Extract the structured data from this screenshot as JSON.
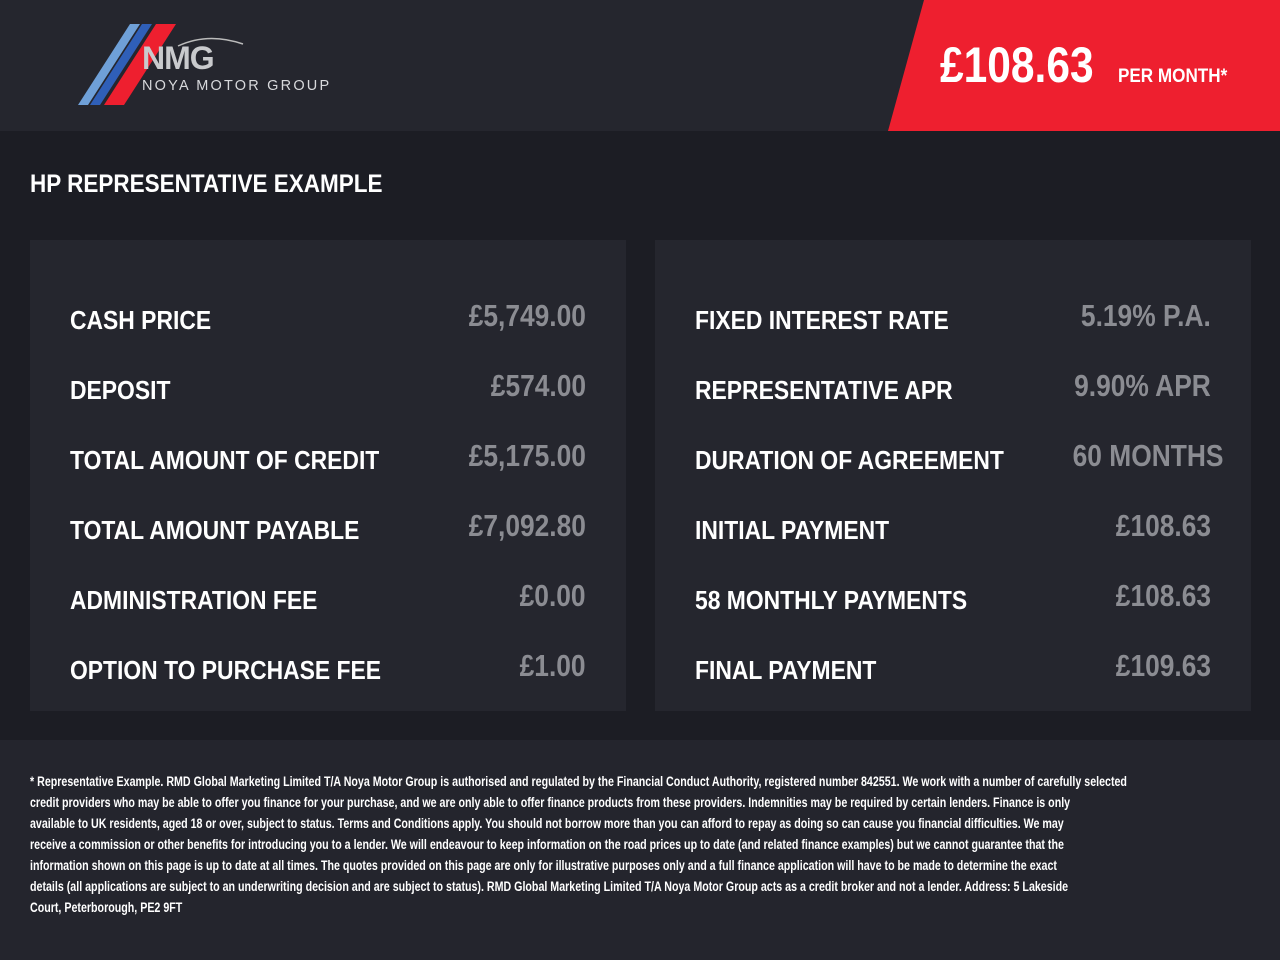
{
  "header": {
    "logo": {
      "mark": "NMG",
      "name": "NOYA MOTOR GROUP"
    },
    "price": {
      "amount": "£108.63",
      "unit": "PER MONTH*"
    },
    "accent_color": "#ee1f2f"
  },
  "section_title": "HP REPRESENTATIVE EXAMPLE",
  "left_panel": [
    {
      "label": "CASH PRICE",
      "value": "£5,749.00"
    },
    {
      "label": "DEPOSIT",
      "value": "£574.00"
    },
    {
      "label": "TOTAL AMOUNT OF CREDIT",
      "value": "£5,175.00"
    },
    {
      "label": "TOTAL AMOUNT PAYABLE",
      "value": "£7,092.80"
    },
    {
      "label": "ADMINISTRATION FEE",
      "value": "£0.00"
    },
    {
      "label": "OPTION TO PURCHASE FEE",
      "value": "£1.00"
    }
  ],
  "right_panel": [
    {
      "label": "FIXED INTEREST RATE",
      "value": "5.19% P.A."
    },
    {
      "label": "REPRESENTATIVE APR",
      "value": "9.90% APR"
    },
    {
      "label": "DURATION OF AGREEMENT",
      "value": "60 MONTHS"
    },
    {
      "label": "INITIAL PAYMENT",
      "value": "£108.63"
    },
    {
      "label": "58 MONTHLY PAYMENTS",
      "value": "£108.63"
    },
    {
      "label": "FINAL PAYMENT",
      "value": "£109.63"
    }
  ],
  "footer": {
    "lines": [
      "* Representative Example. RMD Global Marketing Limited T/A Noya Motor Group is authorised and regulated by the Financial Conduct Authority, registered number 842551. We work with a number of carefully selected",
      "credit providers who may be able to offer you finance for your purchase, and we are only able to offer finance products from these providers. Indemnities may be required by certain lenders. Finance is only",
      "available to UK residents, aged 18 or over, subject to status. Terms and Conditions apply. You should not borrow more than you can afford to repay as doing so can cause you financial difficulties. We may",
      "receive a commission or other benefits for introducing you to a lender. We will endeavour to keep information on the road prices up to date (and related finance examples) but we cannot guarantee that the",
      "information shown on this page is up to date at all times. The quotes provided on this page are only for illustrative purposes only and a full finance application will have to be made to determine the exact",
      "details (all applications are subject to an underwriting decision and are subject to status). RMD Global Marketing Limited T/A Noya Motor Group acts as a credit broker and not a lender. Address:  5 Lakeside",
      "Court, Peterborough, PE2 9FT"
    ]
  }
}
